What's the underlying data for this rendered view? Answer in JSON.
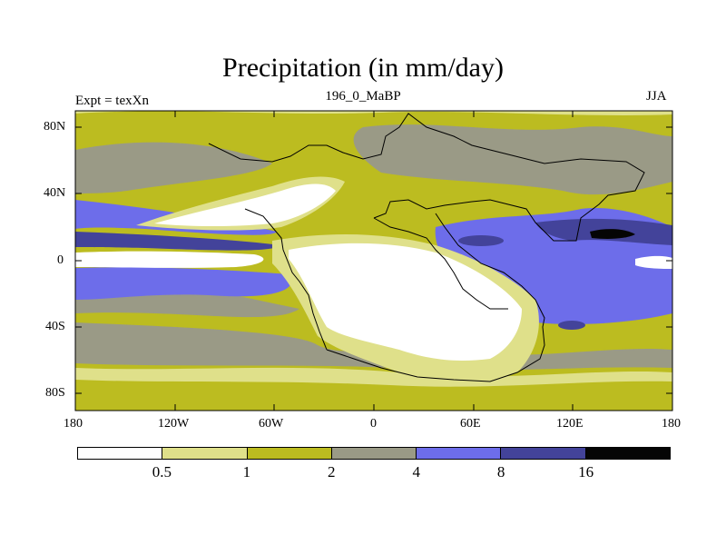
{
  "title": "Precipitation (in mm/day)",
  "left_label": "Expt = texXn",
  "center_label": "196_0_MaBP",
  "right_label": "JJA",
  "y_ticks": [
    "80N",
    "40N",
    "0",
    "40S",
    "80S"
  ],
  "x_ticks": [
    "180",
    "120W",
    "60W",
    "0",
    "60E",
    "120E",
    "180"
  ],
  "colorbar": {
    "levels": [
      "0.5",
      "1",
      "2",
      "4",
      "8",
      "16"
    ],
    "colors": [
      "#ffffff",
      "#dfe08a",
      "#bcbc20",
      "#9a9a86",
      "#6d6dea",
      "#43439a",
      "#050505"
    ]
  },
  "map": {
    "type": "filled-contour",
    "variable": "Precipitation",
    "units": "mm/day",
    "lon_range": [
      -180,
      180
    ],
    "lat_range": [
      -90,
      90
    ]
  }
}
